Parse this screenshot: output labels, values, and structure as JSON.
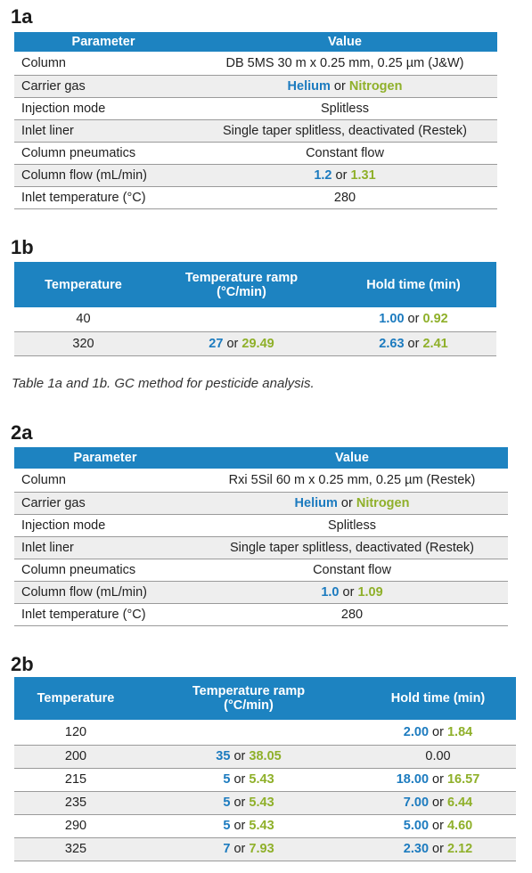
{
  "t1a": {
    "label": "1a",
    "header": [
      "Parameter",
      "Value"
    ],
    "rows": [
      {
        "param": "Column",
        "plain": "DB 5MS 30 m x 0.25 mm, 0.25 µm (J&W)"
      },
      {
        "param": "Carrier gas",
        "blue": "Helium",
        "or": "or",
        "green": "Nitrogen"
      },
      {
        "param": "Injection mode",
        "plain": "Splitless"
      },
      {
        "param": "Inlet liner",
        "plain": "Single taper splitless, deactivated (Restek)"
      },
      {
        "param": "Column pneumatics",
        "plain": "Constant flow"
      },
      {
        "param": "Column flow (mL/min)",
        "blue": "1.2",
        "or": "or",
        "green": "1.31"
      },
      {
        "param": "Inlet temperature (°C)",
        "plain": "280"
      }
    ]
  },
  "t1b": {
    "label": "1b",
    "header": [
      "Temperature",
      "Temperature ramp",
      "(°C/min)",
      "Hold time (min)"
    ],
    "rows": [
      {
        "temp": "40",
        "ramp": null,
        "hold": {
          "blue": "1.00",
          "or": "or",
          "green": "0.92"
        }
      },
      {
        "temp": "320",
        "ramp": {
          "blue": "27",
          "or": "or",
          "green": "29.49"
        },
        "hold": {
          "blue": "2.63",
          "or": "or",
          "green": "2.41"
        }
      }
    ]
  },
  "caption": "Table 1a and 1b. GC method for pesticide analysis.",
  "t2a": {
    "label": "2a",
    "header": [
      "Parameter",
      "Value"
    ],
    "rows": [
      {
        "param": "Column",
        "plain": "Rxi 5Sil 60 m x 0.25 mm, 0.25 µm (Restek)"
      },
      {
        "param": "Carrier gas",
        "blue": "Helium",
        "or": "or",
        "green": "Nitrogen"
      },
      {
        "param": "Injection mode",
        "plain": "Splitless"
      },
      {
        "param": "Inlet liner",
        "plain": "Single taper splitless, deactivated (Restek)"
      },
      {
        "param": "Column pneumatics",
        "plain": "Constant flow"
      },
      {
        "param": "Column flow (mL/min)",
        "blue": "1.0",
        "or": "or",
        "green": "1.09"
      },
      {
        "param": "Inlet temperature (°C)",
        "plain": "280"
      }
    ]
  },
  "t2b": {
    "label": "2b",
    "header": [
      "Temperature",
      "Temperature ramp",
      "(°C/min)",
      "Hold time (min)"
    ],
    "rows": [
      {
        "temp": "120",
        "ramp": null,
        "hold": {
          "blue": "2.00",
          "or": "or",
          "green": "1.84"
        }
      },
      {
        "temp": "200",
        "ramp": {
          "blue": "35",
          "or": "or",
          "green": "38.05"
        },
        "hold": {
          "plain": "0.00"
        }
      },
      {
        "temp": "215",
        "ramp": {
          "blue": "5",
          "or": "or",
          "green": "5.43"
        },
        "hold": {
          "blue": "18.00",
          "or": "or",
          "green": "16.57"
        }
      },
      {
        "temp": "235",
        "ramp": {
          "blue": "5",
          "or": "or",
          "green": "5.43"
        },
        "hold": {
          "blue": "7.00",
          "or": "or",
          "green": "6.44"
        }
      },
      {
        "temp": "290",
        "ramp": {
          "blue": "5",
          "or": "or",
          "green": "5.43"
        },
        "hold": {
          "blue": "5.00",
          "or": "or",
          "green": "4.60"
        }
      },
      {
        "temp": "325",
        "ramp": {
          "blue": "7",
          "or": "or",
          "green": "7.93"
        },
        "hold": {
          "blue": "2.30",
          "or": "or",
          "green": "2.12"
        }
      }
    ]
  },
  "colors": {
    "header_bg": "#1d83c1",
    "blue_value": "#1c7bbf",
    "green_value": "#8fb02a",
    "shade_row": "#eeeeee"
  }
}
